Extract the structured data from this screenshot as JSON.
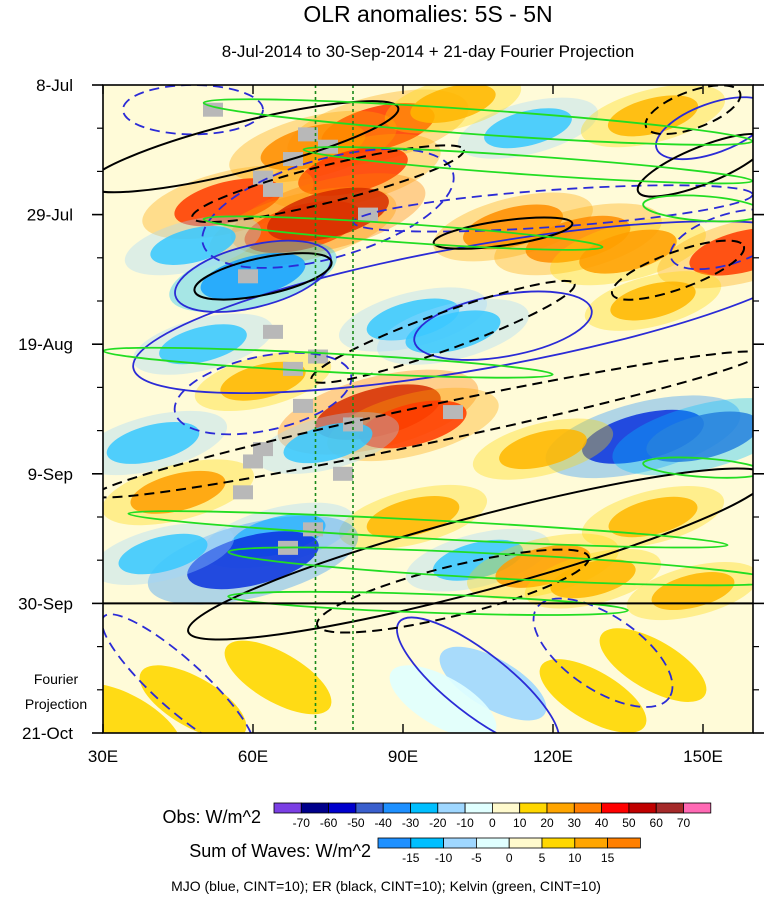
{
  "chart_data": {
    "type": "heatmap",
    "title": "OLR anomalies: 5S - 5N",
    "subtitle": "8-Jul-2014 to 30-Sep-2014 + 21-day Fourier Projection",
    "x_ticks": [
      "30E",
      "60E",
      "90E",
      "120E",
      "150E"
    ],
    "x_tick_values": [
      30,
      60,
      90,
      120,
      150
    ],
    "xlim": [
      30,
      160
    ],
    "y_ticks": [
      "8-Jul",
      "29-Jul",
      "19-Aug",
      "9-Sep",
      "30-Sep",
      "21-Oct"
    ],
    "y_tick_days": [
      0,
      21,
      42,
      63,
      84,
      105
    ],
    "ylim_days": [
      0,
      105
    ],
    "projection_label": [
      "Fourier",
      "Projection"
    ],
    "projection_start_day": 84,
    "reference_lines_lon": [
      72.5,
      80
    ],
    "obs_colorbar": {
      "title": "Obs: W/m^2",
      "labels": [
        "-70",
        "-60",
        "-50",
        "-40",
        "-30",
        "-20",
        "-10",
        "0",
        "10",
        "20",
        "30",
        "40",
        "50",
        "60",
        "70"
      ],
      "colors": [
        "#7b3fe4",
        "#00008b",
        "#0000cd",
        "#3a5fcd",
        "#1e90ff",
        "#00bfff",
        "#9fd7ff",
        "#e0ffff",
        "#fffacd",
        "#ffd700",
        "#ffa500",
        "#ff7f00",
        "#ff0000",
        "#c00000",
        "#a52a2a",
        "#ff69b4"
      ]
    },
    "waves_colorbar": {
      "title": "Sum of Waves: W/m^2",
      "labels": [
        "-15",
        "-10",
        "-5",
        "0",
        "5",
        "10",
        "15"
      ],
      "colors": [
        "#1e90ff",
        "#00bfff",
        "#9fd7ff",
        "#e0ffff",
        "#fffacd",
        "#ffd700",
        "#ffa500",
        "#ff7f00"
      ]
    },
    "footer": "MJO (blue, CINT=10); ER (black, CINT=10); Kelvin (green, CINT=10)",
    "contour_colors": {
      "MJO": "#2b2bd6",
      "ER": "#000000",
      "Kelvin": "#22dd22"
    },
    "anomaly_cells_obs": [
      {
        "lon": 85,
        "day": 7,
        "value": 45
      },
      {
        "lon": 72,
        "day": 10,
        "value": 38
      },
      {
        "lon": 80,
        "day": 14,
        "value": 42
      },
      {
        "lon": 55,
        "day": 19,
        "value": 40
      },
      {
        "lon": 70,
        "day": 23,
        "value": 48
      },
      {
        "lon": 75,
        "day": 21,
        "value": 52
      },
      {
        "lon": 112,
        "day": 23,
        "value": 34
      },
      {
        "lon": 125,
        "day": 25,
        "value": 38
      },
      {
        "lon": 135,
        "day": 27,
        "value": 32
      },
      {
        "lon": 158,
        "day": 27,
        "value": 40
      },
      {
        "lon": 60,
        "day": 31,
        "value": -38
      },
      {
        "lon": 48,
        "day": 26,
        "value": -22
      },
      {
        "lon": 92,
        "day": 38,
        "value": -28
      },
      {
        "lon": 100,
        "day": 40,
        "value": -30
      },
      {
        "lon": 62,
        "day": 48,
        "value": 22
      },
      {
        "lon": 85,
        "day": 53,
        "value": 55
      },
      {
        "lon": 92,
        "day": 55,
        "value": 40
      },
      {
        "lon": 75,
        "day": 58,
        "value": -25
      },
      {
        "lon": 138,
        "day": 57,
        "value": -52
      },
      {
        "lon": 150,
        "day": 57,
        "value": -45
      },
      {
        "lon": 40,
        "day": 58,
        "value": -28
      },
      {
        "lon": 118,
        "day": 59,
        "value": 24
      },
      {
        "lon": 45,
        "day": 66,
        "value": 30
      },
      {
        "lon": 92,
        "day": 70,
        "value": 28
      },
      {
        "lon": 140,
        "day": 70,
        "value": 25
      },
      {
        "lon": 65,
        "day": 73,
        "value": -30
      },
      {
        "lon": 60,
        "day": 77,
        "value": -60
      },
      {
        "lon": 42,
        "day": 76,
        "value": -25
      },
      {
        "lon": 105,
        "day": 77,
        "value": -26
      },
      {
        "lon": 118,
        "day": 78,
        "value": 30
      },
      {
        "lon": 128,
        "day": 80,
        "value": 22
      },
      {
        "lon": 148,
        "day": 82,
        "value": 20
      },
      {
        "lon": 115,
        "day": 7,
        "value": -24
      },
      {
        "lon": 140,
        "day": 5,
        "value": 26
      },
      {
        "lon": 100,
        "day": 3,
        "value": 22
      },
      {
        "lon": 140,
        "day": 35,
        "value": 22
      },
      {
        "lon": 50,
        "day": 42,
        "value": -24
      }
    ],
    "anomaly_cells_projection": [
      {
        "lon": 65,
        "day": 96,
        "value": 8
      },
      {
        "lon": 48,
        "day": 100,
        "value": 7
      },
      {
        "lon": 108,
        "day": 97,
        "value": -6
      },
      {
        "lon": 98,
        "day": 100,
        "value": -4
      },
      {
        "lon": 140,
        "day": 94,
        "value": 7
      },
      {
        "lon": 128,
        "day": 99,
        "value": 5
      },
      {
        "lon": 35,
        "day": 103,
        "value": 5
      }
    ],
    "missing_cells": [
      {
        "lon": 52,
        "day": 4
      },
      {
        "lon": 71,
        "day": 8
      },
      {
        "lon": 75,
        "day": 10
      },
      {
        "lon": 68,
        "day": 12
      },
      {
        "lon": 62,
        "day": 15
      },
      {
        "lon": 64,
        "day": 17
      },
      {
        "lon": 83,
        "day": 21
      },
      {
        "lon": 59,
        "day": 31
      },
      {
        "lon": 64,
        "day": 40
      },
      {
        "lon": 73,
        "day": 44
      },
      {
        "lon": 68,
        "day": 46
      },
      {
        "lon": 70,
        "day": 52
      },
      {
        "lon": 62,
        "day": 59
      },
      {
        "lon": 60,
        "day": 61
      },
      {
        "lon": 78,
        "day": 63
      },
      {
        "lon": 58,
        "day": 66
      },
      {
        "lon": 72,
        "day": 72
      },
      {
        "lon": 67,
        "day": 75
      },
      {
        "lon": 80,
        "day": 55
      },
      {
        "lon": 100,
        "day": 53
      }
    ],
    "contours": {
      "MJO": [
        {
          "center": [
            48,
            4
          ],
          "radii_deg_days": [
            14,
            4
          ],
          "tilt_deg": 0,
          "dashed": true
        },
        {
          "center": [
            75,
            20
          ],
          "radii_deg_days": [
            26,
            8
          ],
          "tilt_deg": -16,
          "dashed": true
        },
        {
          "center": [
            105,
            36
          ],
          "radii_deg_days": [
            70,
            10
          ],
          "tilt_deg": -10,
          "dashed": false
        },
        {
          "center": [
            60,
            31
          ],
          "radii_deg_days": [
            16,
            5
          ],
          "tilt_deg": -14,
          "dashed": false
        },
        {
          "center": [
            110,
            39
          ],
          "radii_deg_days": [
            18,
            5
          ],
          "tilt_deg": -10,
          "dashed": false
        },
        {
          "center": [
            120,
            20
          ],
          "radii_deg_days": [
            40,
            3
          ],
          "tilt_deg": -4,
          "dashed": true
        },
        {
          "center": [
            152,
            7
          ],
          "radii_deg_days": [
            12,
            4
          ],
          "tilt_deg": -20,
          "dashed": false
        },
        {
          "center": [
            155,
            25
          ],
          "radii_deg_days": [
            12,
            4
          ],
          "tilt_deg": -18,
          "dashed": true
        },
        {
          "center": [
            62,
            50
          ],
          "radii_deg_days": [
            18,
            6
          ],
          "tilt_deg": -12,
          "dashed": true
        },
        {
          "center": [
            105,
            97
          ],
          "radii_deg_days": [
            20,
            5
          ],
          "tilt_deg": 38,
          "dashed": false
        },
        {
          "center": [
            130,
            92
          ],
          "radii_deg_days": [
            16,
            6
          ],
          "tilt_deg": 34,
          "dashed": true
        },
        {
          "center": [
            45,
            97
          ],
          "radii_deg_days": [
            20,
            4
          ],
          "tilt_deg": 42,
          "dashed": true
        }
      ],
      "ER": [
        {
          "center": [
            58,
            10
          ],
          "radii_deg_days": [
            32,
            4
          ],
          "tilt_deg": -14,
          "dashed": false
        },
        {
          "center": [
            75,
            16
          ],
          "radii_deg_days": [
            28,
            3
          ],
          "tilt_deg": -14,
          "dashed": true
        },
        {
          "center": [
            110,
            24
          ],
          "radii_deg_days": [
            14,
            2
          ],
          "tilt_deg": -8,
          "dashed": false
        },
        {
          "center": [
            98,
            40
          ],
          "radii_deg_days": [
            28,
            3
          ],
          "tilt_deg": -20,
          "dashed": true
        },
        {
          "center": [
            62,
            31
          ],
          "radii_deg_days": [
            14,
            3
          ],
          "tilt_deg": -12,
          "dashed": false
        },
        {
          "center": [
            150,
            13
          ],
          "radii_deg_days": [
            14,
            3
          ],
          "tilt_deg": -22,
          "dashed": false
        },
        {
          "center": [
            148,
            4
          ],
          "radii_deg_days": [
            10,
            3
          ],
          "tilt_deg": -20,
          "dashed": true
        },
        {
          "center": [
            105,
            76
          ],
          "radii_deg_days": [
            60,
            6
          ],
          "tilt_deg": -15,
          "dashed": false
        },
        {
          "center": [
            100,
            82
          ],
          "radii_deg_days": [
            28,
            4
          ],
          "tilt_deg": -14,
          "dashed": true
        },
        {
          "center": [
            95,
            55
          ],
          "radii_deg_days": [
            68,
            3
          ],
          "tilt_deg": -12,
          "dashed": true
        },
        {
          "center": [
            145,
            30
          ],
          "radii_deg_days": [
            14,
            3
          ],
          "tilt_deg": -20,
          "dashed": true
        }
      ],
      "Kelvin": [
        {
          "center": [
            105,
            6
          ],
          "radii_deg_days": [
            55,
            2
          ],
          "tilt_deg": 4,
          "dashed": false
        },
        {
          "center": [
            115,
            13
          ],
          "radii_deg_days": [
            45,
            1.5
          ],
          "tilt_deg": 4,
          "dashed": false
        },
        {
          "center": [
            90,
            24
          ],
          "radii_deg_days": [
            40,
            1.5
          ],
          "tilt_deg": 4,
          "dashed": false
        },
        {
          "center": [
            75,
            45
          ],
          "radii_deg_days": [
            45,
            1.5
          ],
          "tilt_deg": 3,
          "dashed": false
        },
        {
          "center": [
            150,
            62
          ],
          "radii_deg_days": [
            12,
            1.5
          ],
          "tilt_deg": 4,
          "dashed": false
        },
        {
          "center": [
            95,
            72
          ],
          "radii_deg_days": [
            60,
            1.5
          ],
          "tilt_deg": 3,
          "dashed": false
        },
        {
          "center": [
            110,
            78
          ],
          "radii_deg_days": [
            55,
            2
          ],
          "tilt_deg": 3,
          "dashed": false
        },
        {
          "center": [
            95,
            84
          ],
          "radii_deg_days": [
            40,
            1.5
          ],
          "tilt_deg": 2,
          "dashed": false
        },
        {
          "center": [
            150,
            20
          ],
          "radii_deg_days": [
            12,
            2
          ],
          "tilt_deg": 4,
          "dashed": false
        }
      ]
    }
  }
}
